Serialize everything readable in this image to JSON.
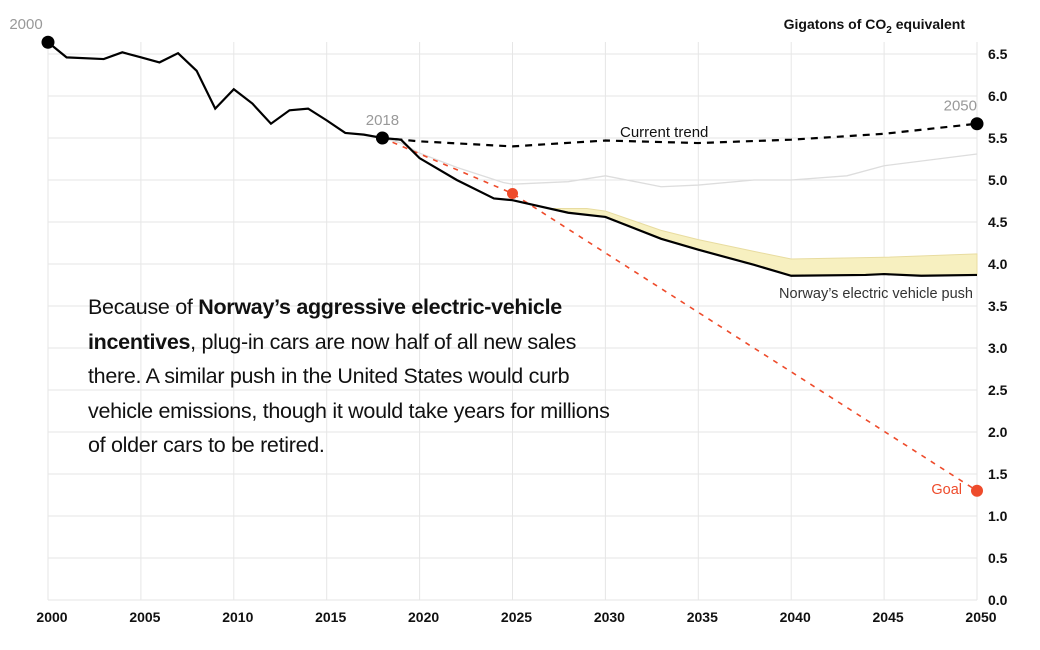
{
  "chart_data": {
    "type": "line",
    "title": "",
    "ylabel": "Gigatons of CO2 equivalent",
    "ylabel_parts": {
      "pre": "Gigatons of CO",
      "sub": "2",
      "post": " equivalent"
    },
    "xlim": [
      2000,
      2050
    ],
    "ylim": [
      0,
      6.5
    ],
    "grid": true,
    "x_ticks": [
      "2000",
      "2005",
      "2010",
      "2015",
      "2020",
      "2025",
      "2030",
      "2035",
      "2040",
      "2045",
      "2050"
    ],
    "y_ticks": [
      "0.0",
      "0.5",
      "1.0",
      "1.5",
      "2.0",
      "2.5",
      "3.0",
      "3.5",
      "4.0",
      "4.5",
      "5.0",
      "5.5",
      "6.0",
      "6.5"
    ],
    "series": [
      {
        "key": "historical",
        "color": "#000000",
        "style": "solid",
        "x": [
          2000,
          2001,
          2003,
          2004,
          2005,
          2006,
          2007,
          2008,
          2009,
          2010,
          2011,
          2012,
          2013,
          2014,
          2015,
          2016,
          2017,
          2018
        ],
        "y": [
          6.64,
          6.46,
          6.44,
          6.52,
          6.46,
          6.4,
          6.51,
          6.3,
          5.85,
          6.08,
          5.91,
          5.67,
          5.83,
          5.85,
          5.71,
          5.56,
          5.54,
          5.5
        ]
      },
      {
        "name": "Current trend",
        "color": "#000000",
        "style": "dashed",
        "x": [
          2018,
          2020,
          2025,
          2030,
          2035,
          2040,
          2045,
          2050
        ],
        "y": [
          5.5,
          5.46,
          5.4,
          5.47,
          5.44,
          5.48,
          5.55,
          5.67
        ]
      },
      {
        "name": "Norway's electric vehicle push",
        "color": "#000000",
        "style": "solid",
        "x": [
          2018,
          2019,
          2020,
          2022,
          2024,
          2025,
          2028,
          2030,
          2033,
          2035,
          2038,
          2040,
          2044,
          2045,
          2047,
          2050
        ],
        "y": [
          5.5,
          5.48,
          5.26,
          5.0,
          4.78,
          4.76,
          4.61,
          4.56,
          4.3,
          4.17,
          3.99,
          3.86,
          3.87,
          3.88,
          3.86,
          3.87
        ]
      },
      {
        "key": "band-upper",
        "color": "#f7f0c0",
        "style": "band",
        "x": [
          2025,
          2027,
          2029,
          2030,
          2033,
          2035,
          2038,
          2040,
          2045,
          2050
        ],
        "y": [
          4.76,
          4.66,
          4.66,
          4.63,
          4.4,
          4.29,
          4.15,
          4.06,
          4.08,
          4.12
        ]
      },
      {
        "key": "reference",
        "color": "#dddddd",
        "style": "thin",
        "x": [
          2018,
          2019,
          2020,
          2022,
          2024.5,
          2025,
          2028,
          2030,
          2033,
          2035,
          2038,
          2040,
          2043,
          2045,
          2050
        ],
        "y": [
          5.5,
          5.44,
          5.32,
          5.15,
          4.97,
          4.95,
          4.98,
          5.05,
          4.92,
          4.94,
          5.0,
          5.0,
          5.05,
          5.17,
          5.31
        ]
      },
      {
        "name": "Goal",
        "color": "#ee4b2b",
        "style": "dashed",
        "x": [
          2018,
          2025,
          2050
        ],
        "y": [
          5.5,
          4.84,
          1.3
        ]
      }
    ],
    "point_labels": [
      {
        "text": "2000",
        "x": 2000,
        "y": 6.64
      },
      {
        "text": "2018",
        "x": 2018,
        "y": 5.5
      },
      {
        "text": "2050",
        "x": 2050,
        "y": 5.67
      }
    ],
    "annotations": {
      "current_trend": "Current trend",
      "norway": "Norway’s electric vehicle push",
      "goal": "Goal"
    }
  },
  "note": {
    "pre": "Because of ",
    "bold": "Norway’s aggressive electric-vehicle incentives",
    "post": ", plug-in cars are now half of all new sales there. A similar push in the United States would curb vehicle emissions, though it would take years for millions of older cars to be retired."
  }
}
